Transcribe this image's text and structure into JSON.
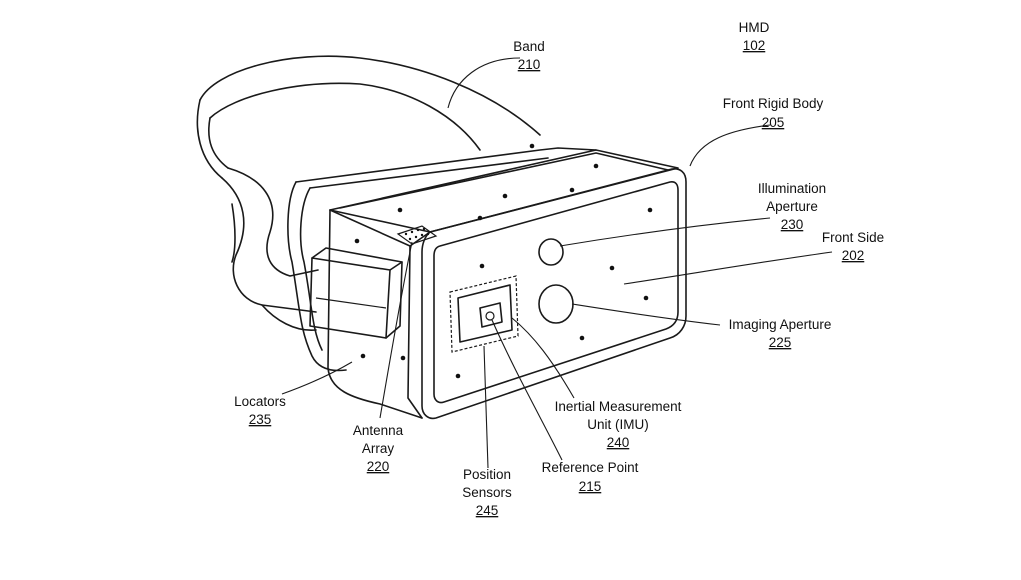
{
  "figure": {
    "hmd": {
      "label": "HMD",
      "ref": "102"
    },
    "callouts": {
      "band": {
        "label": "Band",
        "ref": "210"
      },
      "front_rigid_body": {
        "label": "Front Rigid Body",
        "ref": "205"
      },
      "illumination_aperture": {
        "line1": "Illumination",
        "line2": "Aperture",
        "ref": "230"
      },
      "front_side": {
        "label": "Front Side",
        "ref": "202"
      },
      "imaging_aperture": {
        "label": "Imaging Aperture",
        "ref": "225"
      },
      "imu": {
        "line1": "Inertial Measurement",
        "line2": "Unit (IMU)",
        "ref": "240"
      },
      "reference_point": {
        "label": "Reference Point",
        "ref": "215"
      },
      "position_sensors": {
        "line1": "Position",
        "line2": "Sensors",
        "ref": "245"
      },
      "antenna_array": {
        "line1": "Antenna",
        "line2": "Array",
        "ref": "220"
      },
      "locators": {
        "label": "Locators",
        "ref": "235"
      }
    }
  },
  "colors": {
    "ink": "#1a1a1a",
    "background": "#ffffff"
  }
}
